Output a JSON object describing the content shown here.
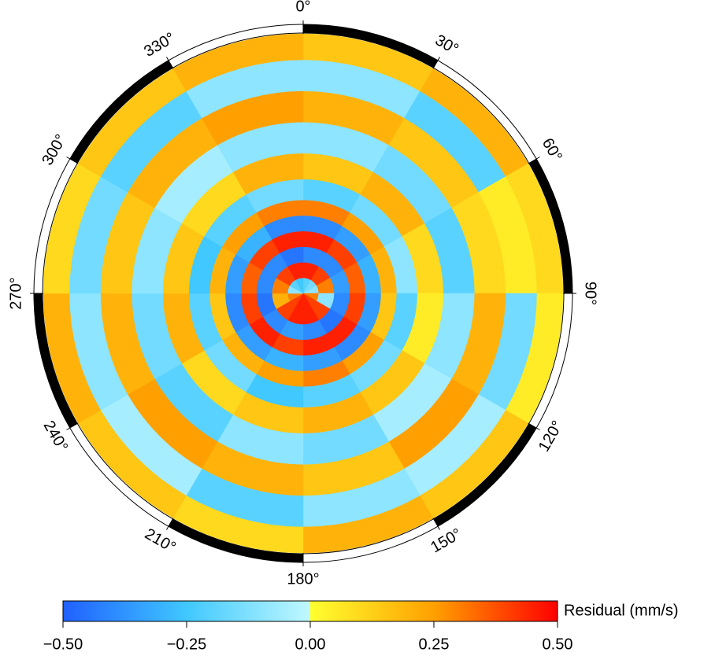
{
  "chart_data": {
    "type": "polar_heatmap",
    "azimuth_ticks": [
      {
        "value": 0,
        "label": "0°"
      },
      {
        "value": 30,
        "label": "30°"
      },
      {
        "value": 60,
        "label": "60°"
      },
      {
        "value": 90,
        "label": "90°"
      },
      {
        "value": 120,
        "label": "120°"
      },
      {
        "value": 150,
        "label": "150°"
      },
      {
        "value": 180,
        "label": "180°"
      },
      {
        "value": 210,
        "label": "210°"
      },
      {
        "value": 240,
        "label": "240°"
      },
      {
        "value": 270,
        "label": "270°"
      },
      {
        "value": 300,
        "label": "300°"
      },
      {
        "value": 330,
        "label": "330°"
      }
    ],
    "azimuth_bins": [
      0,
      30,
      60,
      90,
      120,
      150,
      180,
      210,
      240,
      270,
      300,
      330,
      360
    ],
    "radius_bins": [
      0,
      0.06,
      0.12,
      0.18,
      0.24,
      0.3,
      0.36,
      0.44,
      0.54,
      0.66,
      0.78,
      0.9,
      1.0
    ],
    "values": [
      [
        -0.2,
        -0.15,
        -0.1,
        0.3,
        0.4,
        0.45,
        0.45,
        0.4,
        0.3,
        -0.1,
        -0.2,
        -0.25
      ],
      [
        0.45,
        0.4,
        0.3,
        -0.1,
        0.4,
        0.45,
        0.45,
        0.4,
        0.2,
        0.3,
        0.4,
        0.45
      ],
      [
        -0.4,
        -0.4,
        -0.35,
        -0.4,
        -0.45,
        -0.4,
        -0.35,
        -0.4,
        -0.45,
        -0.4,
        -0.4,
        -0.45
      ],
      [
        0.45,
        0.4,
        0.35,
        0.4,
        0.45,
        0.45,
        0.4,
        0.45,
        0.4,
        0.35,
        0.4,
        0.45
      ],
      [
        -0.4,
        -0.35,
        -0.3,
        -0.35,
        -0.4,
        -0.35,
        -0.3,
        -0.35,
        -0.4,
        -0.35,
        -0.3,
        -0.4
      ],
      [
        0.3,
        0.25,
        0.2,
        0.15,
        0.25,
        0.3,
        0.25,
        0.2,
        0.15,
        0.2,
        0.25,
        0.3
      ],
      [
        -0.2,
        -0.15,
        -0.1,
        -0.2,
        -0.15,
        -0.2,
        -0.25,
        -0.15,
        -0.2,
        -0.25,
        -0.2,
        -0.15
      ],
      [
        0.15,
        0.2,
        0.1,
        0.05,
        0.15,
        0.2,
        0.15,
        0.1,
        0.2,
        0.15,
        0.1,
        0.2
      ],
      [
        -0.1,
        -0.15,
        -0.2,
        -0.1,
        -0.05,
        -0.15,
        -0.1,
        -0.2,
        -0.15,
        -0.1,
        -0.05,
        -0.1
      ],
      [
        0.2,
        0.15,
        0.1,
        0.2,
        0.25,
        0.15,
        0.2,
        0.25,
        0.2,
        0.15,
        0.2,
        0.25
      ],
      [
        -0.1,
        -0.2,
        0.05,
        -0.15,
        -0.05,
        -0.1,
        -0.2,
        -0.05,
        -0.1,
        -0.15,
        -0.2,
        -0.1
      ],
      [
        0.15,
        0.2,
        0.1,
        0.05,
        0.15,
        0.2,
        0.1,
        0.15,
        0.2,
        0.1,
        0.15,
        0.2
      ]
    ],
    "colorscale": [
      "#2060ff",
      "#40c8ff",
      "#c0f8ff",
      "#ffff30",
      "#ffa000",
      "#ff0000"
    ],
    "clim": [
      -0.5,
      0.5
    ],
    "colorbar_label": "Residual (mm/s)",
    "colorbar_ticks": [
      {
        "value": -0.5,
        "label": "−0.50"
      },
      {
        "value": -0.25,
        "label": "−0.25"
      },
      {
        "value": 0,
        "label": "0.00"
      },
      {
        "value": 0.25,
        "label": "0.25"
      },
      {
        "value": 0.5,
        "label": "0.50"
      }
    ]
  }
}
